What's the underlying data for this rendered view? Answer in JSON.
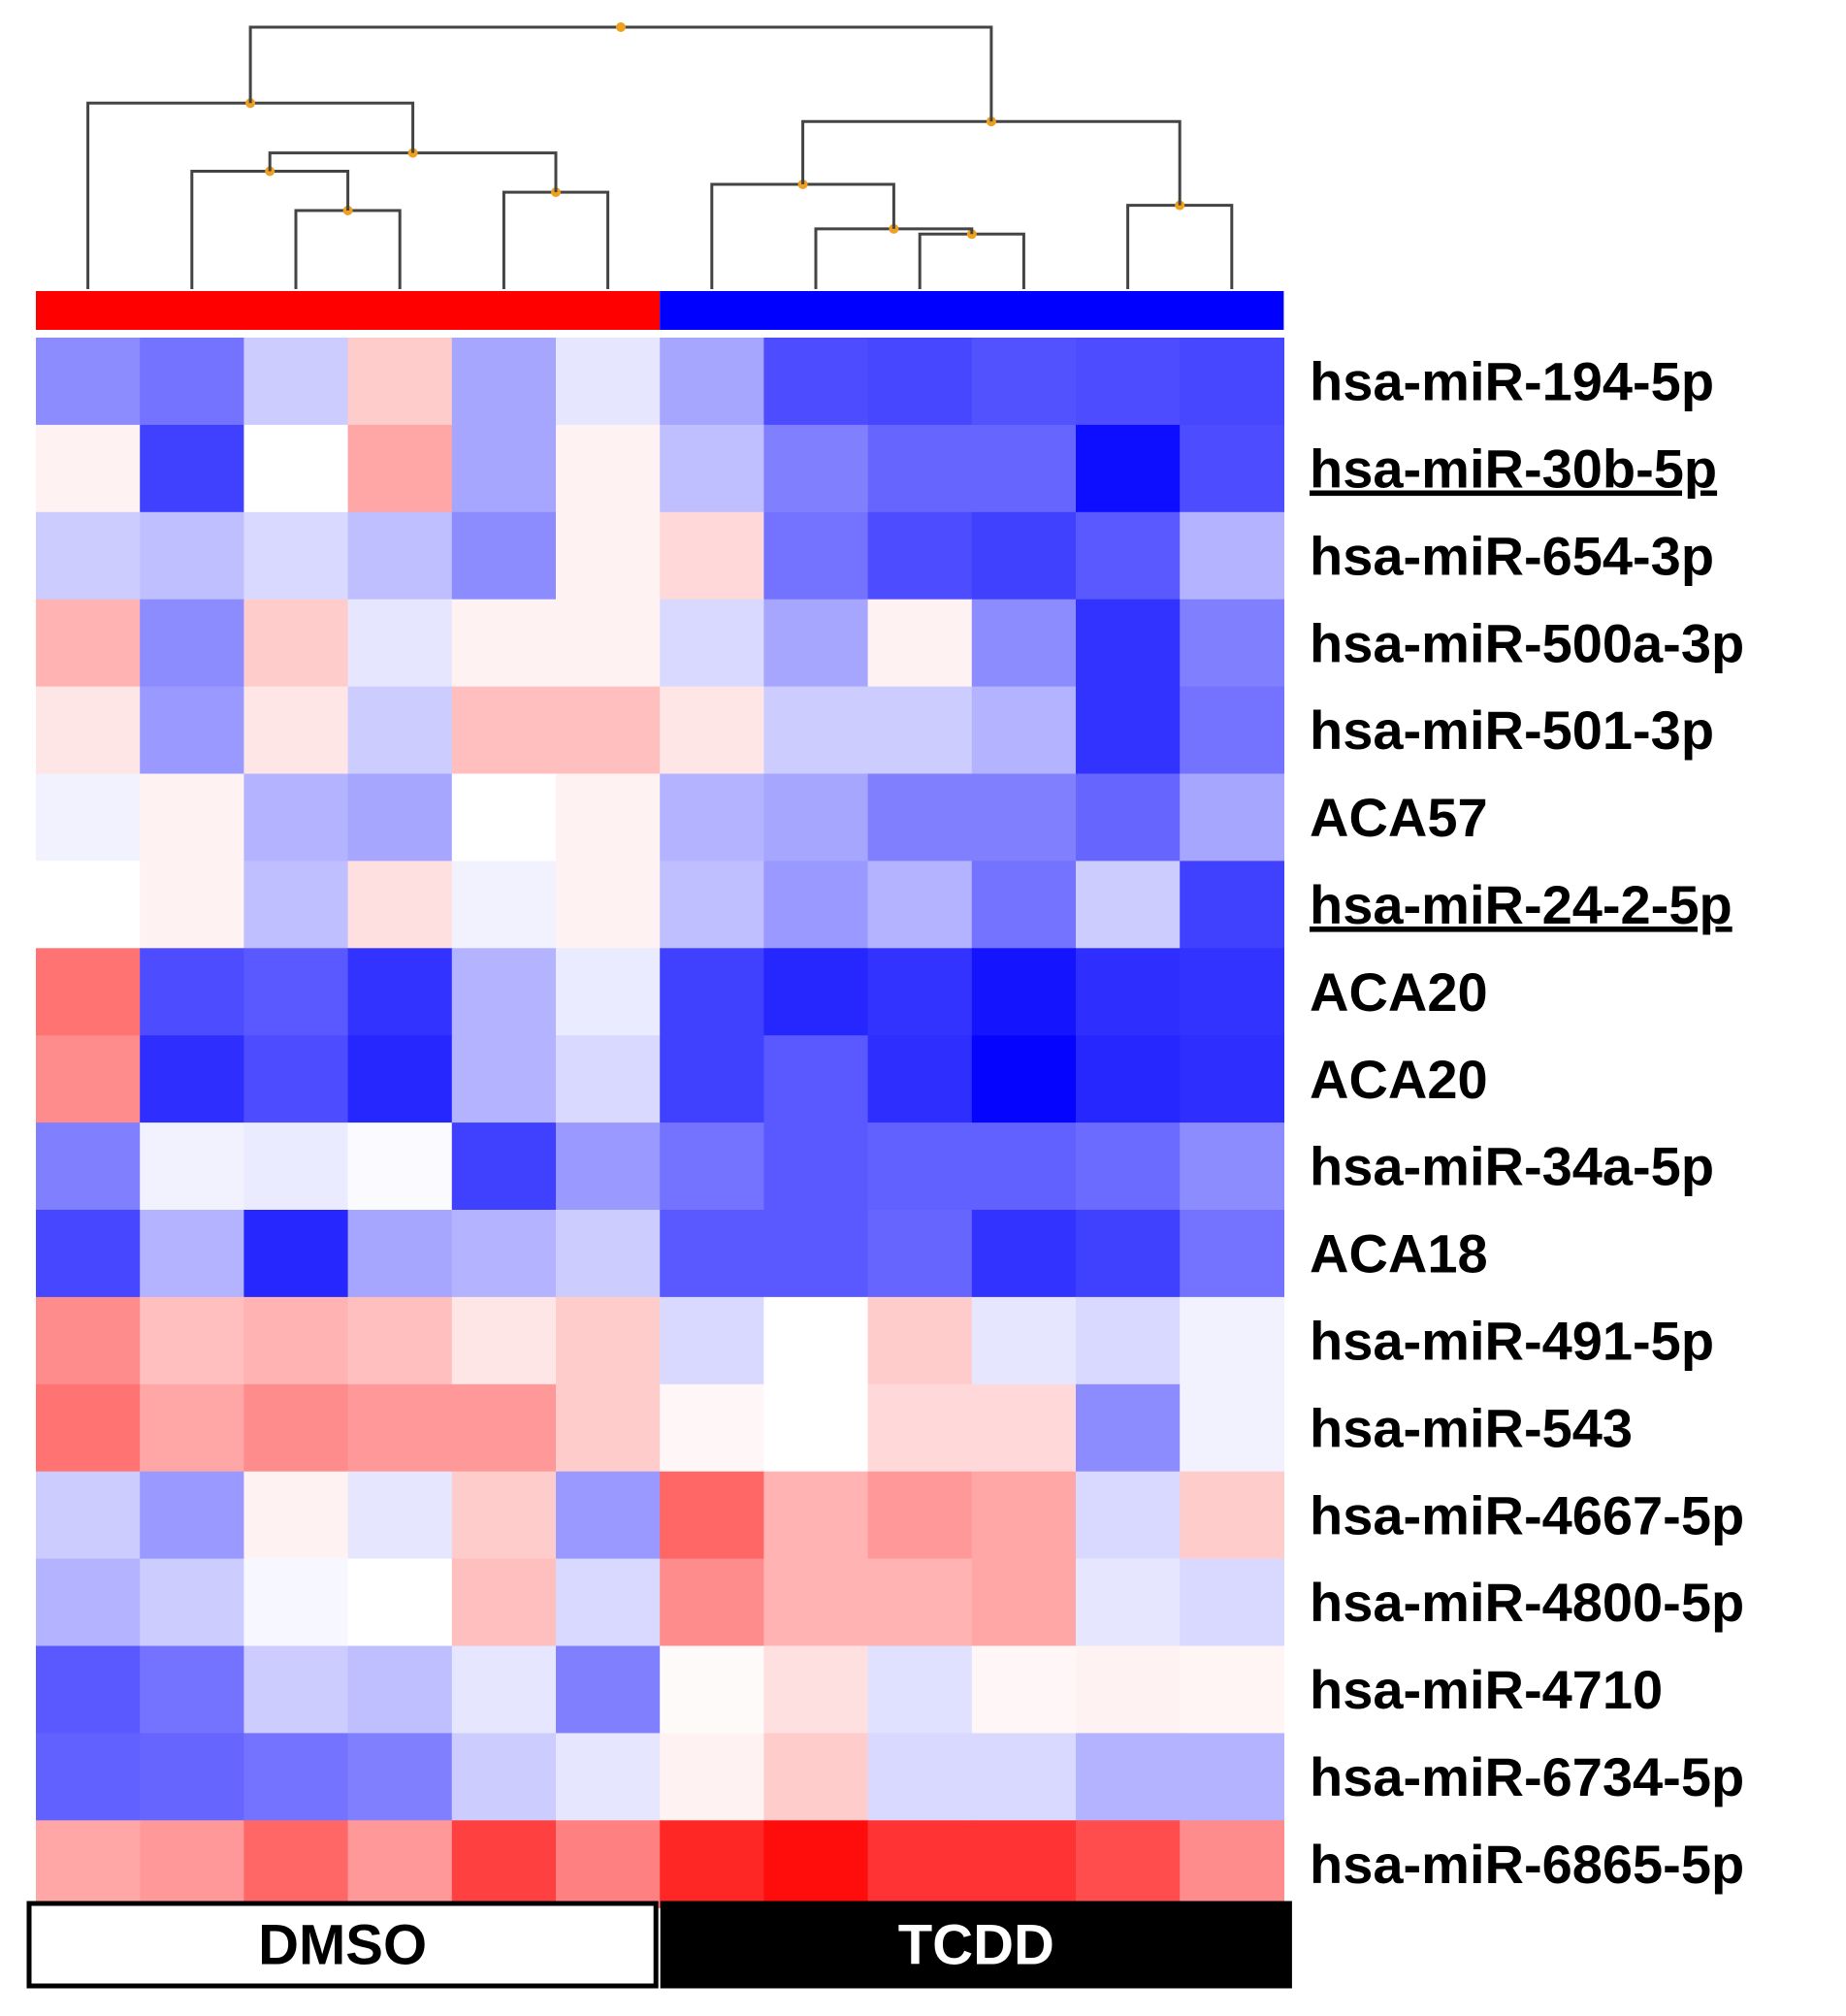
{
  "chart_data": {
    "type": "heatmap",
    "title": "",
    "xlabel": "",
    "ylabel": "",
    "columns": 12,
    "groups": [
      {
        "label": "DMSO",
        "columns": 6,
        "bar_color": "#ff0000",
        "box_fill": "#ffffff",
        "text_color": "#000000"
      },
      {
        "label": "TCDD",
        "columns": 6,
        "bar_color": "#0000ff",
        "box_fill": "#000000",
        "text_color": "#ffffff"
      }
    ],
    "rows": [
      {
        "label": "hsa-miR-194-5p",
        "underline": false
      },
      {
        "label": "hsa-miR-30b-5p",
        "underline": true
      },
      {
        "label": "hsa-miR-654-3p",
        "underline": false
      },
      {
        "label": "hsa-miR-500a-3p",
        "underline": false
      },
      {
        "label": "hsa-miR-501-3p",
        "underline": false
      },
      {
        "label": "ACA57",
        "underline": false
      },
      {
        "label": "hsa-miR-24-2-5p",
        "underline": true
      },
      {
        "label": "ACA20",
        "underline": false
      },
      {
        "label": "ACA20",
        "underline": false
      },
      {
        "label": "hsa-miR-34a-5p",
        "underline": false
      },
      {
        "label": "ACA18",
        "underline": false
      },
      {
        "label": "hsa-miR-491-5p",
        "underline": false
      },
      {
        "label": "hsa-miR-543",
        "underline": false
      },
      {
        "label": "hsa-miR-4667-5p",
        "underline": false
      },
      {
        "label": "hsa-miR-4800-5p",
        "underline": false
      },
      {
        "label": "hsa-miR-4710",
        "underline": false
      },
      {
        "label": "hsa-miR-6734-5p",
        "underline": false
      },
      {
        "label": "hsa-miR-6865-5p",
        "underline": false
      }
    ],
    "color_scale": {
      "negative": "#0000ff",
      "zero": "#ffffff",
      "positive": "#ff0000",
      "range": [
        -1,
        1
      ]
    },
    "values": [
      [
        -0.45,
        -0.55,
        -0.2,
        0.2,
        -0.35,
        -0.1,
        -0.35,
        -0.7,
        -0.72,
        -0.68,
        -0.7,
        -0.72
      ],
      [
        0.05,
        -0.75,
        0.0,
        0.35,
        -0.35,
        0.05,
        -0.25,
        -0.5,
        -0.6,
        -0.6,
        -0.95,
        -0.7
      ],
      [
        -0.2,
        -0.25,
        -0.15,
        -0.25,
        -0.45,
        0.05,
        0.15,
        -0.55,
        -0.7,
        -0.75,
        -0.65,
        -0.3
      ],
      [
        0.3,
        -0.45,
        0.2,
        -0.1,
        0.05,
        0.05,
        -0.15,
        -0.35,
        0.05,
        -0.45,
        -0.8,
        -0.5
      ],
      [
        0.1,
        -0.4,
        0.1,
        -0.2,
        0.25,
        0.25,
        0.1,
        -0.2,
        -0.2,
        -0.3,
        -0.8,
        -0.55
      ],
      [
        -0.05,
        0.05,
        -0.3,
        -0.35,
        0.0,
        0.05,
        -0.3,
        -0.35,
        -0.5,
        -0.5,
        -0.6,
        -0.35
      ],
      [
        0.0,
        0.05,
        -0.25,
        0.12,
        -0.05,
        0.05,
        -0.25,
        -0.4,
        -0.3,
        -0.55,
        -0.2,
        -0.75
      ],
      [
        0.55,
        -0.7,
        -0.65,
        -0.8,
        -0.3,
        -0.08,
        -0.75,
        -0.85,
        -0.8,
        -0.92,
        -0.82,
        -0.8
      ],
      [
        0.45,
        -0.82,
        -0.7,
        -0.85,
        -0.3,
        -0.15,
        -0.75,
        -0.65,
        -0.82,
        -0.98,
        -0.85,
        -0.82
      ],
      [
        -0.5,
        -0.05,
        -0.08,
        -0.02,
        -0.75,
        -0.4,
        -0.55,
        -0.65,
        -0.62,
        -0.62,
        -0.58,
        -0.45
      ],
      [
        -0.72,
        -0.3,
        -0.85,
        -0.35,
        -0.3,
        -0.2,
        -0.65,
        -0.65,
        -0.6,
        -0.8,
        -0.75,
        -0.55
      ],
      [
        0.45,
        0.25,
        0.3,
        0.25,
        0.1,
        0.2,
        -0.15,
        0.0,
        0.2,
        -0.1,
        -0.15,
        -0.05
      ],
      [
        0.55,
        0.35,
        0.45,
        0.4,
        0.4,
        0.2,
        0.03,
        0.0,
        0.15,
        0.15,
        -0.45,
        -0.05
      ],
      [
        -0.2,
        -0.4,
        0.05,
        -0.1,
        0.2,
        -0.4,
        0.6,
        0.3,
        0.4,
        0.35,
        -0.15,
        0.2
      ],
      [
        -0.3,
        -0.2,
        -0.03,
        0.0,
        0.25,
        -0.15,
        0.45,
        0.3,
        0.3,
        0.35,
        -0.1,
        -0.15
      ],
      [
        -0.65,
        -0.55,
        -0.2,
        -0.25,
        -0.1,
        -0.5,
        0.02,
        0.12,
        -0.12,
        0.03,
        0.05,
        0.04
      ],
      [
        -0.62,
        -0.6,
        -0.55,
        -0.5,
        -0.2,
        -0.1,
        0.05,
        0.2,
        -0.15,
        -0.15,
        -0.3,
        -0.3
      ],
      [
        0.35,
        0.4,
        0.6,
        0.4,
        0.75,
        0.5,
        0.85,
        0.95,
        0.8,
        0.8,
        0.7,
        0.45
      ]
    ],
    "dendrogram": {
      "note": "column clustering; leaves 0-11, heights normalized 0 (leaf) to 1 (root)",
      "line_color": "#444444",
      "node_color": "#f0a020",
      "merges": [
        {
          "id": "A",
          "a": 2,
          "b": 3,
          "h": 0.3
        },
        {
          "id": "B",
          "a": 1,
          "b": "A",
          "h": 0.45
        },
        {
          "id": "C",
          "a": 4,
          "b": 5,
          "h": 0.37
        },
        {
          "id": "D",
          "a": "B",
          "b": "C",
          "h": 0.52
        },
        {
          "id": "E",
          "a": 0,
          "b": "D",
          "h": 0.71
        },
        {
          "id": "F",
          "a": 8,
          "b": 9,
          "h": 0.21
        },
        {
          "id": "G",
          "a": 7,
          "b": "F",
          "h": 0.23
        },
        {
          "id": "H",
          "a": 6,
          "b": "G",
          "h": 0.4
        },
        {
          "id": "I",
          "a": 10,
          "b": 11,
          "h": 0.32
        },
        {
          "id": "J",
          "a": "H",
          "b": "I",
          "h": 0.64
        },
        {
          "id": "K",
          "a": "E",
          "b": "J",
          "h": 1.0
        }
      ]
    }
  }
}
